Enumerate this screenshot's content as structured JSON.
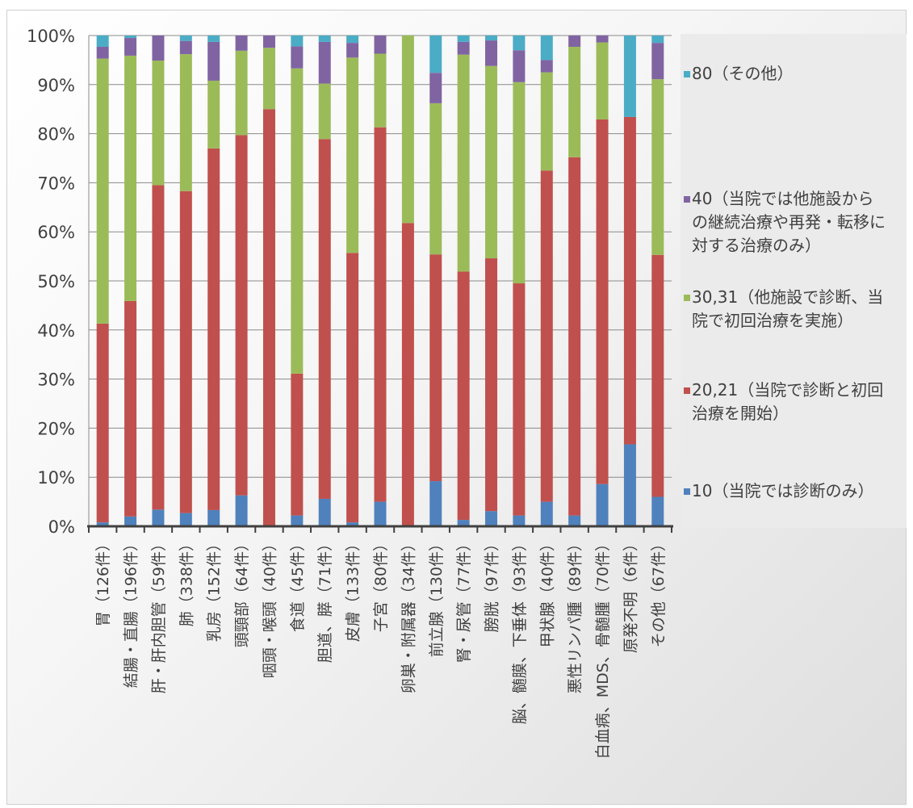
{
  "chart_data": {
    "type": "bar",
    "stacked": true,
    "percent": true,
    "ylim": [
      0,
      100
    ],
    "yticks": [
      "0%",
      "10%",
      "20%",
      "30%",
      "40%",
      "50%",
      "60%",
      "70%",
      "80%",
      "90%",
      "100%"
    ],
    "grid": true,
    "legend_position": "right",
    "categories": [
      "胃（126件）",
      "結腸・直腸（196件）",
      "肝・肝内胆管（59件）",
      "肺（338件）",
      "乳房（152件）",
      "頭頸部（64件）",
      "咽頭・喉頭（40件）",
      "食道（45件）",
      "胆道、膵（71件）",
      "皮膚（133件）",
      "子宮（80件）",
      "卵巣・附属器（34件）",
      "前立腺（130件）",
      "腎・尿管（77件）",
      "膀胱（97件）",
      "脳、髄膜、下垂体（93件）",
      "甲状腺（40件）",
      "悪性リンパ腫（89件）",
      "白血病、MDS、骨髄腫（70件）",
      "原発不明（6件）",
      "その他（67件）"
    ],
    "series": [
      {
        "name": "10（当院では診断のみ）",
        "color": "#4f81bd",
        "values": [
          0.8,
          2.0,
          3.4,
          2.7,
          3.3,
          6.3,
          0,
          2.2,
          5.6,
          0.8,
          5.0,
          0,
          9.2,
          1.3,
          3.1,
          2.2,
          5.0,
          2.2,
          8.6,
          16.7,
          6.0
        ]
      },
      {
        "name": "20,21（当院で診断と初回治療を開始）",
        "color": "#c0504d",
        "values": [
          40.5,
          43.9,
          66.1,
          65.6,
          73.7,
          73.4,
          85.0,
          28.9,
          73.3,
          54.9,
          76.3,
          61.8,
          46.2,
          50.6,
          51.5,
          47.3,
          67.5,
          73.0,
          74.3,
          66.7,
          49.3
        ]
      },
      {
        "name": "30,31（他施設で診断、当院で初回治療を実施）",
        "color": "#9bbb59",
        "values": [
          54.0,
          50.0,
          25.4,
          27.9,
          13.8,
          17.2,
          12.5,
          62.2,
          11.3,
          39.8,
          15.0,
          38.2,
          30.8,
          44.2,
          39.2,
          41.0,
          20.0,
          22.5,
          15.7,
          0,
          35.8
        ]
      },
      {
        "name": "40（当院では他施設からの継続治療や再発・転移に対する治療のみ）",
        "color": "#8064a2",
        "values": [
          2.4,
          3.6,
          5.1,
          2.7,
          7.9,
          3.1,
          2.5,
          4.5,
          8.5,
          3.0,
          3.7,
          0,
          6.2,
          2.6,
          5.2,
          6.5,
          2.5,
          2.3,
          1.4,
          0,
          7.4
        ]
      },
      {
        "name": "80（その他）",
        "color": "#4bacc6",
        "values": [
          2.3,
          0.5,
          0,
          1.1,
          1.3,
          0,
          0,
          2.2,
          1.3,
          1.5,
          0,
          0,
          7.6,
          1.3,
          1.0,
          3.0,
          5.0,
          0,
          0,
          16.6,
          1.5
        ]
      }
    ],
    "legend": [
      {
        "text": "80（その他）",
        "color": "#4bacc6"
      },
      {
        "text": "40（当院では他施設から\nの継続治療や再発・転移に\n対する治療のみ）",
        "color": "#8064a2"
      },
      {
        "text": "30,31（他施設で診断、当\n院で初回治療を実施）",
        "color": "#9bbb59"
      },
      {
        "text": "20,21（当院で診断と初回\n治療を開始）",
        "color": "#c0504d"
      },
      {
        "text": "10（当院では診断のみ）",
        "color": "#4f81bd"
      }
    ]
  }
}
